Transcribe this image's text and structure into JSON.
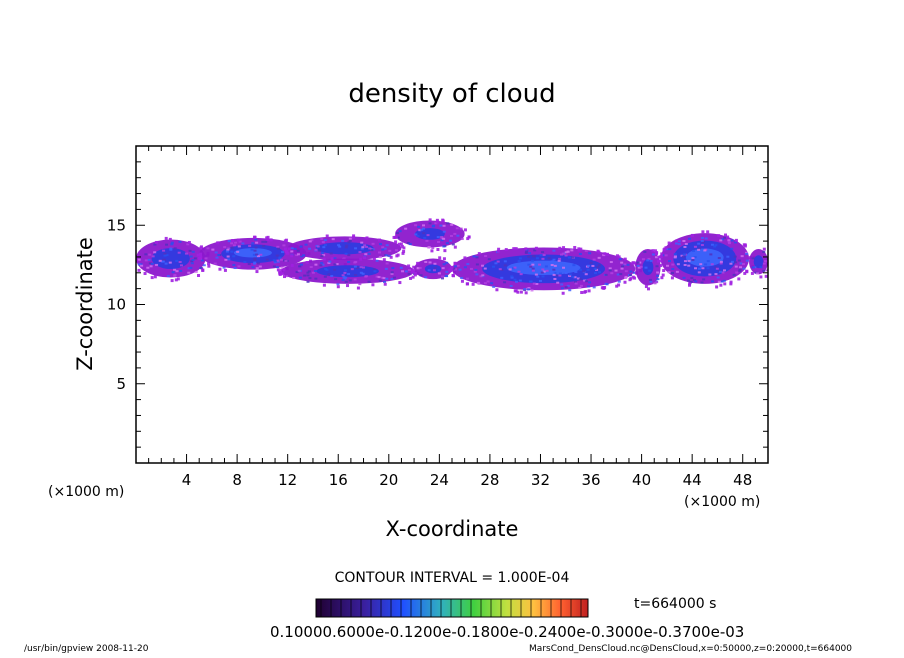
{
  "chart_data": {
    "type": "heatmap",
    "title": "density of cloud",
    "xlabel": "X-coordinate",
    "ylabel": "Z-coordinate",
    "x_unit": "(×1000 m)",
    "y_unit": "(×1000 m)",
    "xlim": [
      0,
      50
    ],
    "ylim": [
      0,
      20
    ],
    "x_ticks": [
      4,
      8,
      12,
      16,
      20,
      24,
      28,
      32,
      36,
      40,
      44,
      48
    ],
    "y_ticks": [
      5,
      10,
      15
    ],
    "contour_interval": "CONTOUR INTERVAL = 1.000E-04",
    "time_label": "t=664000 s",
    "colorbar_labels": [
      "0.1000E-05",
      "0.6000E-04",
      "0.1200E-03",
      "0.1800E-03",
      "0.2400E-03",
      "0.3000E-03",
      "0.3700E-03"
    ],
    "colorbar_label_text": "0.10000.6000e-0.1200e-0.1800e-0.2400e-0.3000e-0.3700e-03",
    "footer_left": "/usr/bin/gpview   2008-11-20",
    "footer_right": "MarsCond_DensCloud.nc@DensCloud,x=0:50000,z=0:20000,t=664000",
    "cloud_regions": [
      {
        "x0": 0,
        "x1": 5.5,
        "z0": 11.7,
        "z1": 14.1,
        "intensity": 0.5
      },
      {
        "x0": 5.0,
        "x1": 13.5,
        "z0": 12.2,
        "z1": 14.2,
        "intensity": 0.6
      },
      {
        "x0": 12.0,
        "x1": 21.0,
        "z0": 12.8,
        "z1": 14.3,
        "intensity": 0.4
      },
      {
        "x0": 20.5,
        "x1": 26.0,
        "z0": 13.6,
        "z1": 15.3,
        "intensity": 0.2
      },
      {
        "x0": 11.5,
        "x1": 22.0,
        "z0": 11.3,
        "z1": 12.9,
        "intensity": 0.3
      },
      {
        "x0": 22.0,
        "x1": 25.0,
        "z0": 11.6,
        "z1": 12.9,
        "intensity": 0.2
      },
      {
        "x0": 25.0,
        "x1": 39.5,
        "z0": 10.9,
        "z1": 13.6,
        "intensity": 0.8
      },
      {
        "x0": 39.5,
        "x1": 41.5,
        "z0": 11.2,
        "z1": 13.5,
        "intensity": 0.2
      },
      {
        "x0": 41.5,
        "x1": 48.5,
        "z0": 11.3,
        "z1": 14.5,
        "intensity": 0.9
      },
      {
        "x0": 48.5,
        "x1": 50.0,
        "z0": 11.9,
        "z1": 13.5,
        "intensity": 0.4
      }
    ]
  }
}
